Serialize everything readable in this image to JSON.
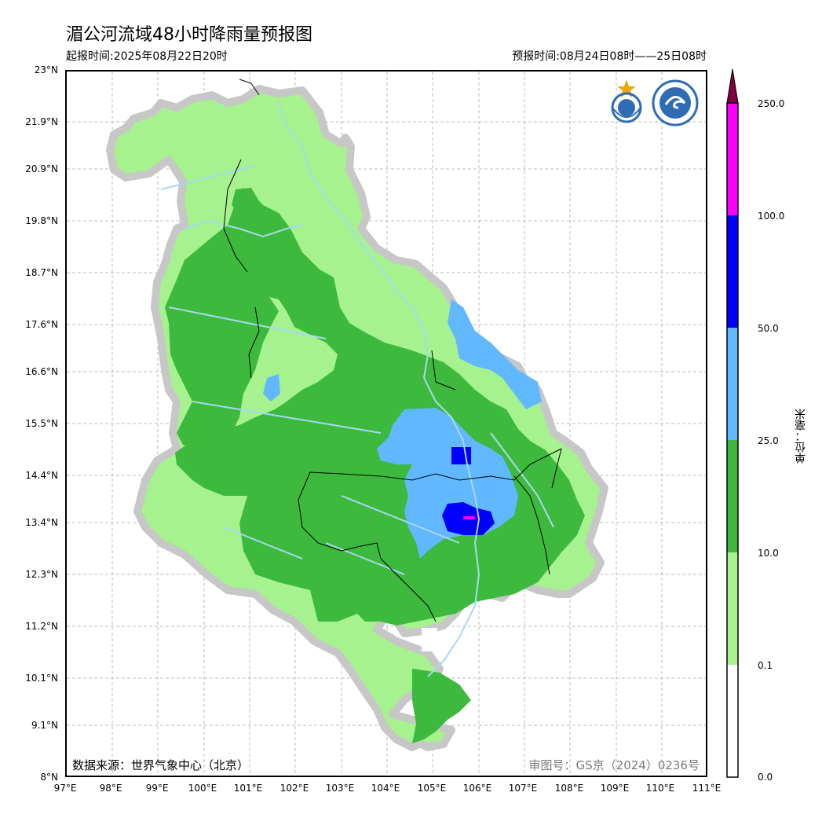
{
  "title": "湄公河流域48小时降雨量预报图",
  "issue_time": "起报时间:2025年08月22日20时",
  "forecast_period": "预报时间:08月24日08时——25日08时",
  "data_source": "数据来源：世界气象中心（北京）",
  "approval_number": "审图号：GS京（2024）0236号",
  "y_axis_labels": [
    "23°N",
    "21.9°N",
    "20.9°N",
    "19.8°N",
    "18.7°N",
    "17.6°N",
    "16.6°N",
    "15.5°N",
    "14.4°N",
    "13.4°N",
    "12.3°N",
    "11.2°N",
    "10.1°N",
    "9.1°N",
    "8°N"
  ],
  "x_axis_labels": [
    "97°E",
    "98°E",
    "99°E",
    "100°E",
    "101°E",
    "102°E",
    "103°E",
    "104°E",
    "105°E",
    "106°E",
    "107°E",
    "108°E",
    "109°E",
    "110°E",
    "111°E"
  ],
  "colorbar": {
    "unit": "单位：毫米",
    "thresholds": [
      "0.0",
      "0.1",
      "10.0",
      "25.0",
      "50.0",
      "100.0",
      "250.0"
    ],
    "colors": [
      "#ffffff",
      "#a6f28f",
      "#3dba3d",
      "#61b8ff",
      "#0000ff",
      "#fa00fa",
      "#800040"
    ]
  },
  "logos": [
    "wmo-logo-icon",
    "cma-logo-icon"
  ]
}
